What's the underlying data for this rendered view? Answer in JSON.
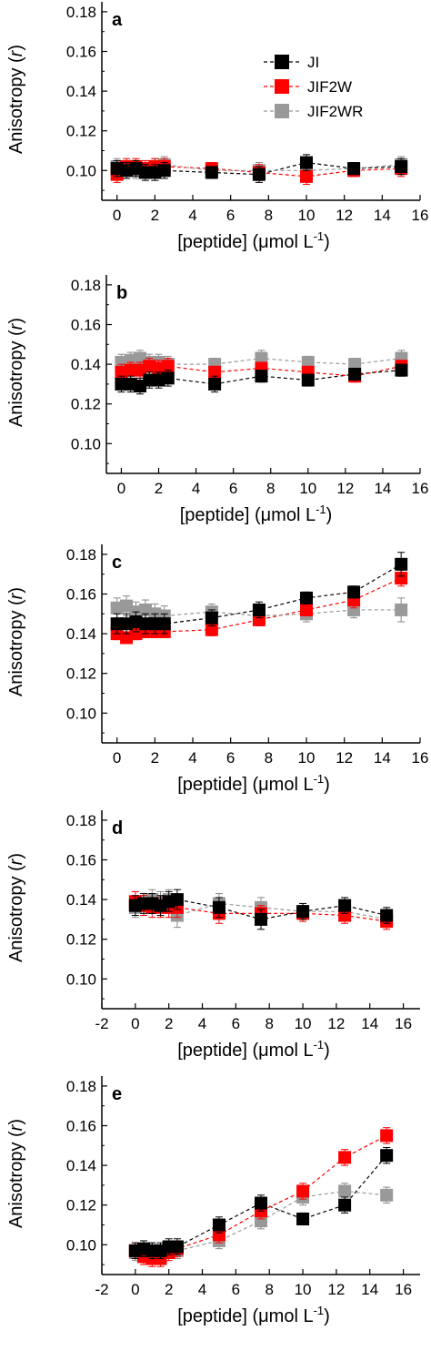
{
  "chart_data": [
    {
      "type": "scatter",
      "panel_label": "a",
      "xlabel_main": "[peptide] (",
      "xlabel_unit": "μmol L",
      "xlabel_exp": "-1",
      "xlabel_close": ")",
      "ylabel_main": "Anisotropy (",
      "ylabel_var": "r",
      "ylabel_close": ")",
      "xlim": [
        -0.8,
        16
      ],
      "ylim": [
        0.085,
        0.185
      ],
      "xticks": [
        "0",
        "2",
        "4",
        "6",
        "8",
        "10",
        "12",
        "14",
        "16"
      ],
      "yticks": [
        "0.10",
        "0.12",
        "0.14",
        "0.16",
        "0.18"
      ],
      "legend": {
        "placement": "top-right",
        "entries": [
          "JI",
          "JIF2W",
          "JIF2WR"
        ]
      },
      "series": [
        {
          "name": "JI",
          "color": "#000000",
          "x": [
            0,
            0.5,
            1,
            1.5,
            2,
            2.5,
            5,
            7.5,
            10,
            12.5,
            15
          ],
          "y": [
            0.101,
            0.1,
            0.101,
            0.099,
            0.099,
            0.1,
            0.099,
            0.098,
            0.104,
            0.101,
            0.102
          ],
          "err": [
            0.004,
            0.004,
            0.004,
            0.004,
            0.004,
            0.004,
            0.003,
            0.004,
            0.004,
            0.003,
            0.004
          ]
        },
        {
          "name": "JIF2W",
          "color": "#ff0000",
          "x": [
            0,
            0.5,
            1,
            1.5,
            2,
            2.5,
            5,
            7.5,
            10,
            12.5,
            15
          ],
          "y": [
            0.098,
            0.102,
            0.102,
            0.101,
            0.102,
            0.102,
            0.101,
            0.099,
            0.097,
            0.1,
            0.101
          ],
          "err": [
            0.004,
            0.004,
            0.004,
            0.004,
            0.004,
            0.004,
            0.003,
            0.004,
            0.004,
            0.003,
            0.004
          ]
        },
        {
          "name": "JIF2WR",
          "color": "#999999",
          "x": [
            0,
            0.5,
            1,
            1.5,
            2,
            2.5,
            5,
            7.5,
            10,
            12.5,
            15
          ],
          "y": [
            0.102,
            0.101,
            0.1,
            0.1,
            0.102,
            0.103,
            0.1,
            0.1,
            0.1,
            0.101,
            0.103
          ],
          "err": [
            0.004,
            0.004,
            0.004,
            0.004,
            0.004,
            0.004,
            0.003,
            0.004,
            0.004,
            0.003,
            0.004
          ]
        }
      ]
    },
    {
      "type": "scatter",
      "panel_label": "b",
      "xlabel_main": "[peptide] (",
      "xlabel_unit": "μmol L",
      "xlabel_exp": "-1",
      "xlabel_close": ")",
      "ylabel_main": "Anisotropy (",
      "ylabel_var": "r",
      "ylabel_close": ")",
      "xlim": [
        -0.8,
        16
      ],
      "ylim": [
        0.085,
        0.185
      ],
      "xticks": [
        "0",
        "2",
        "4",
        "6",
        "8",
        "10",
        "12",
        "14",
        "16"
      ],
      "yticks": [
        "0.10",
        "0.12",
        "0.14",
        "0.16",
        "0.18"
      ],
      "series": [
        {
          "name": "JI",
          "color": "#000000",
          "x": [
            0,
            0.5,
            1,
            1.5,
            2,
            2.5,
            5,
            7.5,
            10,
            12.5,
            15
          ],
          "y": [
            0.13,
            0.13,
            0.129,
            0.132,
            0.132,
            0.133,
            0.13,
            0.134,
            0.132,
            0.135,
            0.137
          ],
          "err": [
            0.004,
            0.004,
            0.004,
            0.004,
            0.004,
            0.004,
            0.004,
            0.003,
            0.003,
            0.003,
            0.003
          ]
        },
        {
          "name": "JIF2W",
          "color": "#ff0000",
          "x": [
            0,
            0.5,
            1,
            1.5,
            2,
            2.5,
            5,
            7.5,
            10,
            12.5,
            15
          ],
          "y": [
            0.136,
            0.137,
            0.137,
            0.139,
            0.138,
            0.139,
            0.136,
            0.138,
            0.136,
            0.134,
            0.139
          ],
          "err": [
            0.004,
            0.004,
            0.004,
            0.004,
            0.004,
            0.004,
            0.003,
            0.003,
            0.003,
            0.003,
            0.003
          ]
        },
        {
          "name": "JIF2WR",
          "color": "#999999",
          "x": [
            0,
            0.5,
            1,
            1.5,
            2,
            2.5,
            5,
            7.5,
            10,
            12.5,
            15
          ],
          "y": [
            0.141,
            0.142,
            0.143,
            0.141,
            0.141,
            0.14,
            0.14,
            0.143,
            0.141,
            0.14,
            0.143
          ],
          "err": [
            0.004,
            0.004,
            0.004,
            0.004,
            0.004,
            0.004,
            0.003,
            0.004,
            0.003,
            0.003,
            0.004
          ]
        }
      ]
    },
    {
      "type": "scatter",
      "panel_label": "c",
      "xlabel_main": "[peptide] (",
      "xlabel_unit": "μmol L",
      "xlabel_exp": "-1",
      "xlabel_close": ")",
      "ylabel_main": "Anisotropy (",
      "ylabel_var": "r",
      "ylabel_close": ")",
      "xlim": [
        -0.8,
        16
      ],
      "ylim": [
        0.085,
        0.185
      ],
      "xticks": [
        "0",
        "2",
        "4",
        "6",
        "8",
        "10",
        "12",
        "14",
        "16"
      ],
      "yticks": [
        "0.10",
        "0.12",
        "0.14",
        "0.16",
        "0.18"
      ],
      "series": [
        {
          "name": "JI",
          "color": "#000000",
          "x": [
            0,
            0.5,
            1,
            1.5,
            2,
            2.5,
            5,
            7.5,
            10,
            12.5,
            15
          ],
          "y": [
            0.145,
            0.145,
            0.146,
            0.145,
            0.145,
            0.145,
            0.148,
            0.152,
            0.158,
            0.161,
            0.175
          ],
          "err": [
            0.005,
            0.005,
            0.005,
            0.005,
            0.005,
            0.005,
            0.004,
            0.004,
            0.003,
            0.003,
            0.006
          ]
        },
        {
          "name": "JIF2W",
          "color": "#ff0000",
          "x": [
            0,
            0.5,
            1,
            1.5,
            2,
            2.5,
            5,
            7.5,
            10,
            12.5,
            15
          ],
          "y": [
            0.14,
            0.138,
            0.14,
            0.141,
            0.141,
            0.141,
            0.142,
            0.147,
            0.152,
            0.157,
            0.168
          ],
          "err": [
            0.003,
            0.003,
            0.003,
            0.003,
            0.003,
            0.003,
            0.003,
            0.003,
            0.003,
            0.004,
            0.004
          ]
        },
        {
          "name": "JIF2WR",
          "color": "#999999",
          "x": [
            0,
            0.5,
            1,
            1.5,
            2,
            2.5,
            5,
            7.5,
            10,
            12.5,
            15
          ],
          "y": [
            0.153,
            0.154,
            0.151,
            0.152,
            0.15,
            0.149,
            0.151,
            0.149,
            0.15,
            0.152,
            0.152
          ],
          "err": [
            0.005,
            0.005,
            0.005,
            0.005,
            0.005,
            0.005,
            0.004,
            0.004,
            0.004,
            0.004,
            0.006
          ]
        }
      ]
    },
    {
      "type": "scatter",
      "panel_label": "d",
      "xlabel_main": "[peptide] (",
      "xlabel_unit": "μmol L",
      "xlabel_exp": "-1",
      "xlabel_close": ")",
      "ylabel_main": "Anisotropy (",
      "ylabel_var": "r",
      "ylabel_close": ")",
      "xlim": [
        -2,
        17
      ],
      "ylim": [
        0.085,
        0.185
      ],
      "xticks": [
        "-2",
        "0",
        "2",
        "4",
        "6",
        "8",
        "10",
        "12",
        "14",
        "16"
      ],
      "yticks": [
        "0.10",
        "0.12",
        "0.14",
        "0.16",
        "0.18"
      ],
      "series": [
        {
          "name": "JI",
          "color": "#000000",
          "x": [
            0,
            0.5,
            1,
            1.5,
            2,
            2.5,
            5,
            7.5,
            10,
            12.5,
            15
          ],
          "y": [
            0.137,
            0.138,
            0.138,
            0.137,
            0.139,
            0.14,
            0.136,
            0.13,
            0.134,
            0.137,
            0.132
          ],
          "err": [
            0.005,
            0.005,
            0.005,
            0.005,
            0.005,
            0.005,
            0.005,
            0.005,
            0.004,
            0.004,
            0.004
          ]
        },
        {
          "name": "JIF2W",
          "color": "#ff0000",
          "x": [
            0,
            0.5,
            1,
            1.5,
            2,
            2.5,
            5,
            7.5,
            10,
            12.5,
            15
          ],
          "y": [
            0.139,
            0.137,
            0.136,
            0.136,
            0.136,
            0.136,
            0.133,
            0.133,
            0.133,
            0.132,
            0.129
          ],
          "err": [
            0.005,
            0.005,
            0.005,
            0.005,
            0.005,
            0.005,
            0.005,
            0.004,
            0.004,
            0.004,
            0.004
          ]
        },
        {
          "name": "JIF2WR",
          "color": "#999999",
          "x": [
            0,
            0.5,
            1,
            1.5,
            2,
            2.5,
            5,
            7.5,
            10,
            12.5,
            15
          ],
          "y": [
            0.136,
            0.137,
            0.14,
            0.139,
            0.14,
            0.132,
            0.138,
            0.136,
            0.134,
            0.134,
            0.13
          ],
          "err": [
            0.005,
            0.005,
            0.005,
            0.005,
            0.005,
            0.006,
            0.005,
            0.005,
            0.004,
            0.004,
            0.004
          ]
        }
      ]
    },
    {
      "type": "scatter",
      "panel_label": "e",
      "xlabel_main": "[peptide] (",
      "xlabel_unit": "μmol L",
      "xlabel_exp": "-1",
      "xlabel_close": ")",
      "ylabel_main": "Anisotropy (",
      "ylabel_var": "r",
      "ylabel_close": ")",
      "xlim": [
        -2,
        17
      ],
      "ylim": [
        0.085,
        0.185
      ],
      "xticks": [
        "-2",
        "0",
        "2",
        "4",
        "6",
        "8",
        "10",
        "12",
        "14",
        "16"
      ],
      "yticks": [
        "0.10",
        "0.12",
        "0.14",
        "0.16",
        "0.18"
      ],
      "series": [
        {
          "name": "JI",
          "color": "#000000",
          "x": [
            0,
            0.5,
            1,
            1.5,
            2,
            2.5,
            5,
            7.5,
            10,
            12.5,
            15
          ],
          "y": [
            0.097,
            0.098,
            0.097,
            0.097,
            0.099,
            0.099,
            0.11,
            0.121,
            0.113,
            0.12,
            0.145
          ],
          "err": [
            0.004,
            0.004,
            0.004,
            0.004,
            0.004,
            0.004,
            0.004,
            0.004,
            0.003,
            0.004,
            0.004
          ]
        },
        {
          "name": "JIF2W",
          "color": "#ff0000",
          "x": [
            0,
            0.5,
            1,
            1.5,
            2,
            2.5,
            5,
            7.5,
            10,
            12.5,
            15
          ],
          "y": [
            0.097,
            0.094,
            0.093,
            0.093,
            0.096,
            0.098,
            0.105,
            0.117,
            0.127,
            0.144,
            0.155
          ],
          "err": [
            0.004,
            0.004,
            0.004,
            0.004,
            0.004,
            0.004,
            0.004,
            0.004,
            0.004,
            0.004,
            0.004
          ]
        },
        {
          "name": "JIF2WR",
          "color": "#999999",
          "x": [
            0,
            0.5,
            1,
            1.5,
            2,
            2.5,
            5,
            7.5,
            10,
            12.5,
            15
          ],
          "y": [
            0.096,
            0.095,
            0.097,
            0.096,
            0.098,
            0.097,
            0.102,
            0.112,
            0.124,
            0.127,
            0.125
          ],
          "err": [
            0.004,
            0.004,
            0.004,
            0.004,
            0.004,
            0.004,
            0.004,
            0.004,
            0.004,
            0.004,
            0.004
          ]
        }
      ]
    }
  ]
}
